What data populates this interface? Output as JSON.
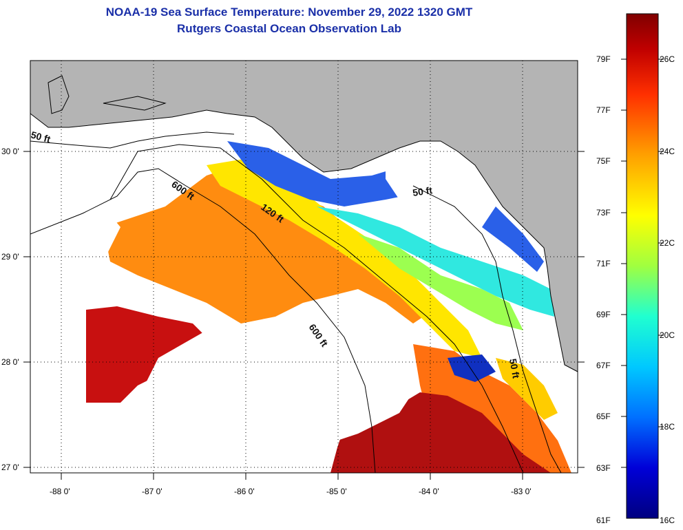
{
  "title": "NOAA-19 Sea Surface Temperature:  November 29, 2022 1320 GMT",
  "subtitle": "Rutgers Coastal Ocean Observation Lab",
  "map": {
    "lon_labels": [
      "-88 0'",
      "-87 0'",
      "-86 0'",
      "-85 0'",
      "-84 0'",
      "-83 0'"
    ],
    "lat_labels": [
      "30 0'",
      "29 0'",
      "28 0'",
      "27 0'"
    ],
    "contours": [
      "50 ft",
      "600 ft",
      "120 ft",
      "600 ft",
      "50 ft",
      "50 ft"
    ],
    "colors": {
      "land": "#b4b4b4",
      "cloud": "#ffffff",
      "frame": "#000000"
    }
  },
  "colorbar": {
    "f_labels": [
      "79F",
      "77F",
      "75F",
      "73F",
      "71F",
      "69F",
      "67F",
      "65F",
      "63F",
      "61F"
    ],
    "c_labels": [
      "26C",
      "24C",
      "22C",
      "20C",
      "18C",
      "16C"
    ],
    "stops": [
      "#000080",
      "#0000d8",
      "#0070ff",
      "#00c8ff",
      "#20ffd0",
      "#a0ff40",
      "#ffff00",
      "#ffa000",
      "#ff3000",
      "#c00000",
      "#800000"
    ]
  }
}
